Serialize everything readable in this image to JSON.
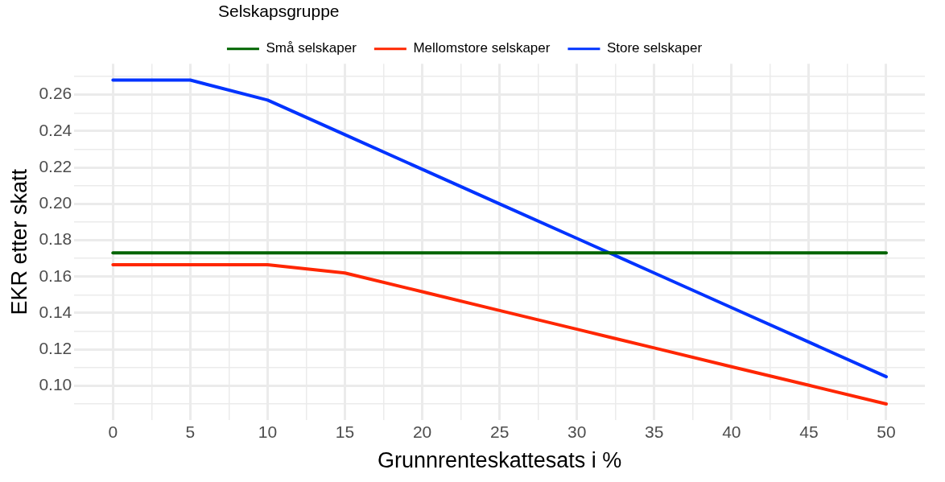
{
  "chart_data": {
    "type": "line",
    "xlabel": "Grunnrenteskattesats i %",
    "ylabel": "EKR etter skatt",
    "legend_title": "Selskapsgruppe",
    "legend": "top",
    "grid": true,
    "xlim": [
      -2.5,
      52.5
    ],
    "xticks": [
      0,
      {
        "value": 2.5,
        "label": null
      },
      5,
      {
        "value": 7.5,
        "label": null
      },
      10,
      {
        "value": 12.5,
        "label": null
      },
      15,
      {
        "value": 17.5,
        "label": null
      },
      20,
      {
        "value": 22.5,
        "label": null
      },
      25,
      {
        "value": 27.5,
        "label": null
      },
      30,
      {
        "value": 32.5,
        "label": null
      },
      35,
      {
        "value": 37.5,
        "label": null
      },
      40,
      {
        "value": 42.5,
        "label": null
      },
      45,
      {
        "value": 47.5,
        "label": null
      },
      50
    ],
    "ylim": [
      0.081,
      0.277
    ],
    "yticks": [
      {
        "value": 0.09,
        "label": null
      },
      {
        "value": 0.1,
        "label": "0.10"
      },
      {
        "value": 0.11,
        "label": null
      },
      {
        "value": 0.12,
        "label": "0.12"
      },
      {
        "value": 0.13,
        "label": null
      },
      {
        "value": 0.14,
        "label": "0.14"
      },
      {
        "value": 0.15,
        "label": null
      },
      {
        "value": 0.16,
        "label": "0.16"
      },
      {
        "value": 0.17,
        "label": null
      },
      {
        "value": 0.18,
        "label": "0.18"
      },
      {
        "value": 0.19,
        "label": null
      },
      {
        "value": 0.2,
        "label": "0.20"
      },
      {
        "value": 0.21,
        "label": null
      },
      {
        "value": 0.22,
        "label": "0.22"
      },
      {
        "value": 0.23,
        "label": null
      },
      {
        "value": 0.24,
        "label": "0.24"
      },
      {
        "value": 0.25,
        "label": null
      },
      {
        "value": 0.26,
        "label": "0.26"
      },
      {
        "value": 0.27,
        "label": null
      }
    ],
    "x": [
      0,
      5,
      10,
      15,
      20,
      25,
      30,
      35,
      40,
      45,
      50
    ],
    "marker": "none",
    "line_style": "solid",
    "series": [
      {
        "name": "Små selskaper",
        "color": "#006400",
        "values": [
          0.173,
          0.173,
          0.173,
          0.173,
          0.173,
          0.173,
          0.173,
          0.173,
          0.173,
          0.173,
          0.173
        ]
      },
      {
        "name": "Mellomstore selskaper",
        "color": "#ff2600",
        "values": [
          0.1665,
          0.1665,
          0.1665,
          0.162,
          0.1517,
          0.1414,
          0.1311,
          0.1208,
          0.1105,
          0.1003,
          0.09
        ]
      },
      {
        "name": "Store selskaper",
        "color": "#0033ff",
        "values": [
          0.268,
          0.268,
          0.257,
          0.238,
          0.219,
          0.2,
          0.181,
          0.162,
          0.143,
          0.124,
          0.105
        ]
      }
    ]
  }
}
